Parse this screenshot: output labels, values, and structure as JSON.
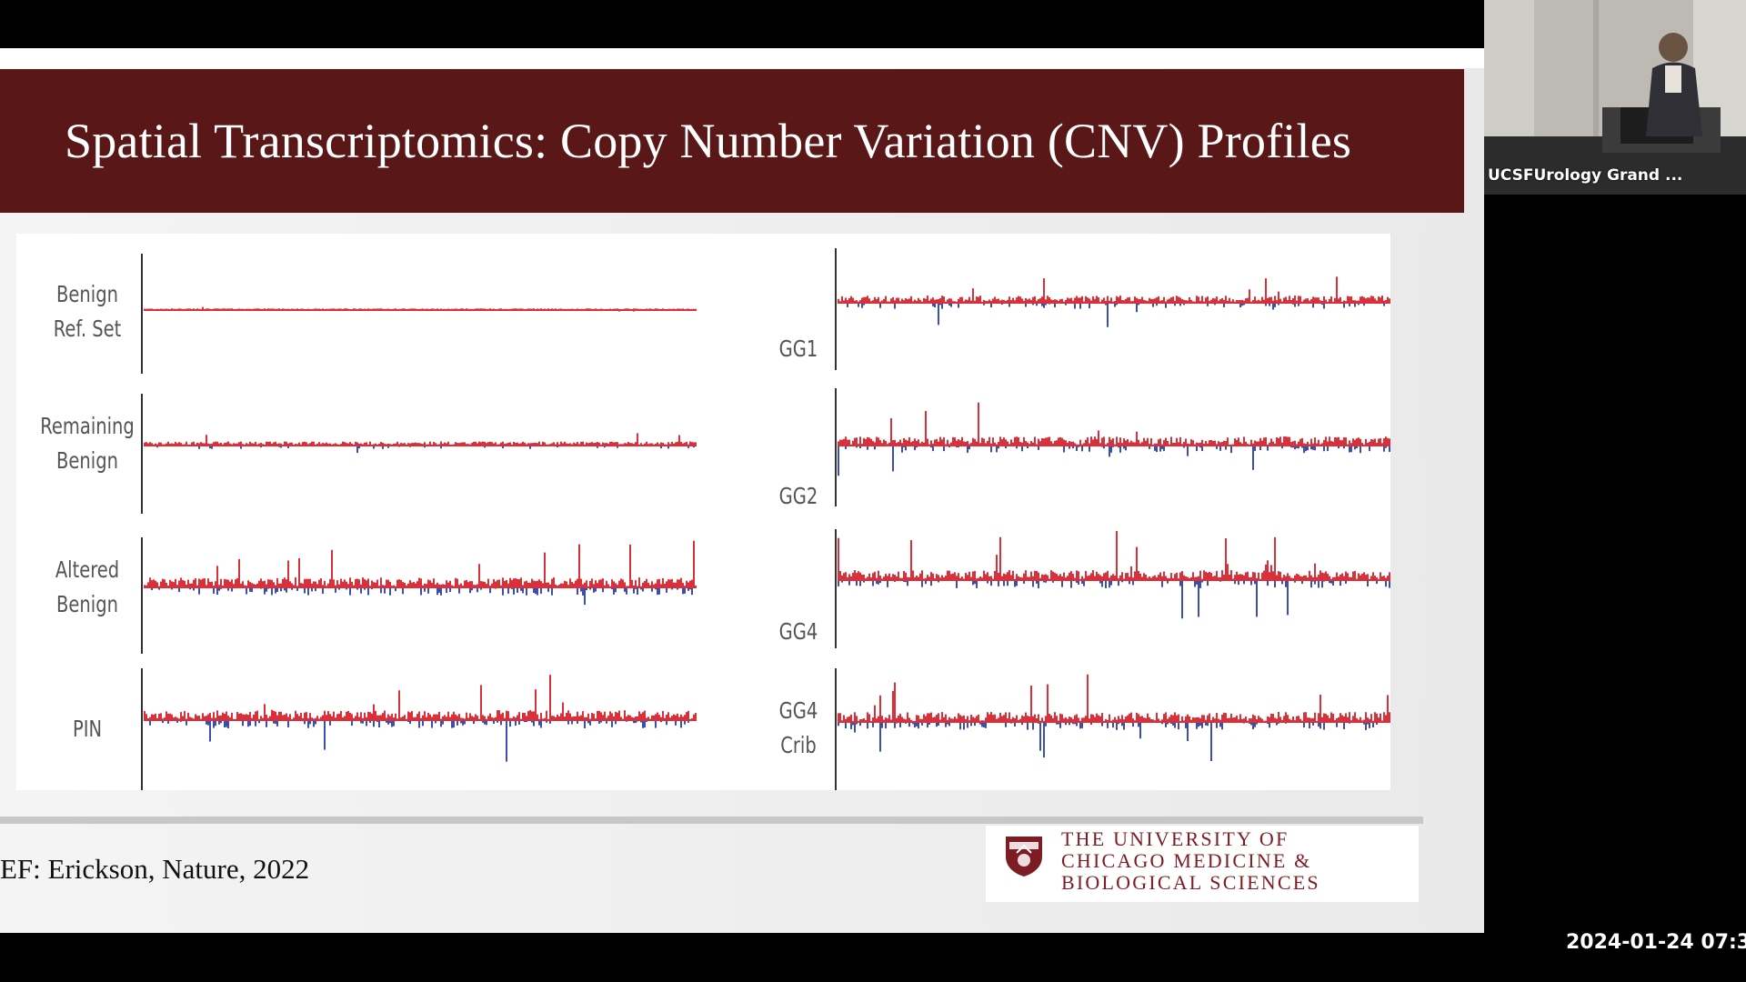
{
  "slide": {
    "title": "Spatial Transcriptomics: Copy Number Variation (CNV) Profiles",
    "reference": "EF: Erickson, Nature, 2022",
    "logo_lines": [
      "THE UNIVERSITY OF",
      "CHICAGO MEDICINE &",
      "BIOLOGICAL SCIENCES"
    ],
    "colors": {
      "title_bar": "#5a1717",
      "gain": "#d9303a",
      "loss": "#3a4fae",
      "logo": "#7d1c22"
    }
  },
  "figure": {
    "left_labels": [
      [
        "Benign",
        "Ref. Set"
      ],
      [
        "Remaining",
        "Benign"
      ],
      [
        "Altered",
        "Benign"
      ],
      [
        "PIN"
      ]
    ],
    "right_labels": [
      [
        "GG1"
      ],
      [
        "GG2"
      ],
      [
        "GG4"
      ],
      [
        "GG4",
        "Crib"
      ]
    ]
  },
  "video": {
    "participant_name": "UCSFUrology Grand ..."
  },
  "timestamp": "2024-01-24 07:3"
}
